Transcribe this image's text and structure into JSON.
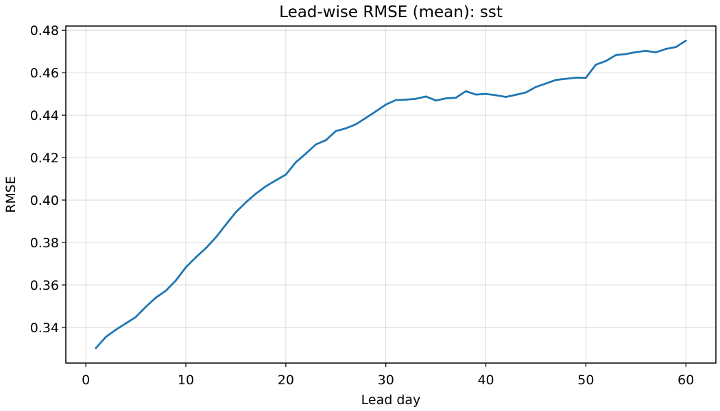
{
  "chart_data": {
    "type": "line",
    "title": "Lead-wise RMSE (mean): sst",
    "xlabel": "Lead day",
    "ylabel": "RMSE",
    "xlim": [
      -2,
      63
    ],
    "ylim": [
      0.3232,
      0.482
    ],
    "xticks": [
      0,
      10,
      20,
      30,
      40,
      50,
      60
    ],
    "yticks": [
      0.34,
      0.36,
      0.38,
      0.4,
      0.42,
      0.44,
      0.46,
      0.48
    ],
    "ytick_labels": [
      "0.34",
      "0.36",
      "0.38",
      "0.40",
      "0.42",
      "0.44",
      "0.46",
      "0.48"
    ],
    "grid": true,
    "series_color": "#1f77b4",
    "series": [
      {
        "x": [
          1,
          2,
          3,
          4,
          5,
          6,
          7,
          8,
          9,
          10,
          11,
          12,
          13,
          14,
          15,
          16,
          17,
          18,
          19,
          20,
          21,
          22,
          23,
          24,
          25,
          26,
          27,
          28,
          29,
          30,
          31,
          32,
          33,
          34,
          35,
          36,
          37,
          38,
          39,
          40,
          41,
          42,
          43,
          44,
          45,
          46,
          47,
          48,
          49,
          50,
          51,
          52,
          53,
          54,
          55,
          56,
          57,
          58,
          59,
          60
        ],
        "values": [
          0.3302,
          0.3355,
          0.3389,
          0.3419,
          0.3449,
          0.3497,
          0.354,
          0.3573,
          0.3621,
          0.3683,
          0.373,
          0.3773,
          0.3824,
          0.3884,
          0.3943,
          0.3989,
          0.403,
          0.4065,
          0.4093,
          0.412,
          0.4178,
          0.4219,
          0.4262,
          0.4282,
          0.4325,
          0.4338,
          0.4357,
          0.4387,
          0.4418,
          0.445,
          0.4471,
          0.4473,
          0.4477,
          0.4488,
          0.4469,
          0.4479,
          0.4482,
          0.4513,
          0.4497,
          0.45,
          0.4494,
          0.4486,
          0.4496,
          0.4507,
          0.4533,
          0.4549,
          0.4566,
          0.4571,
          0.4577,
          0.4576,
          0.4638,
          0.4655,
          0.4683,
          0.4688,
          0.4697,
          0.4703,
          0.4696,
          0.4712,
          0.4721,
          0.4751
        ]
      }
    ]
  }
}
